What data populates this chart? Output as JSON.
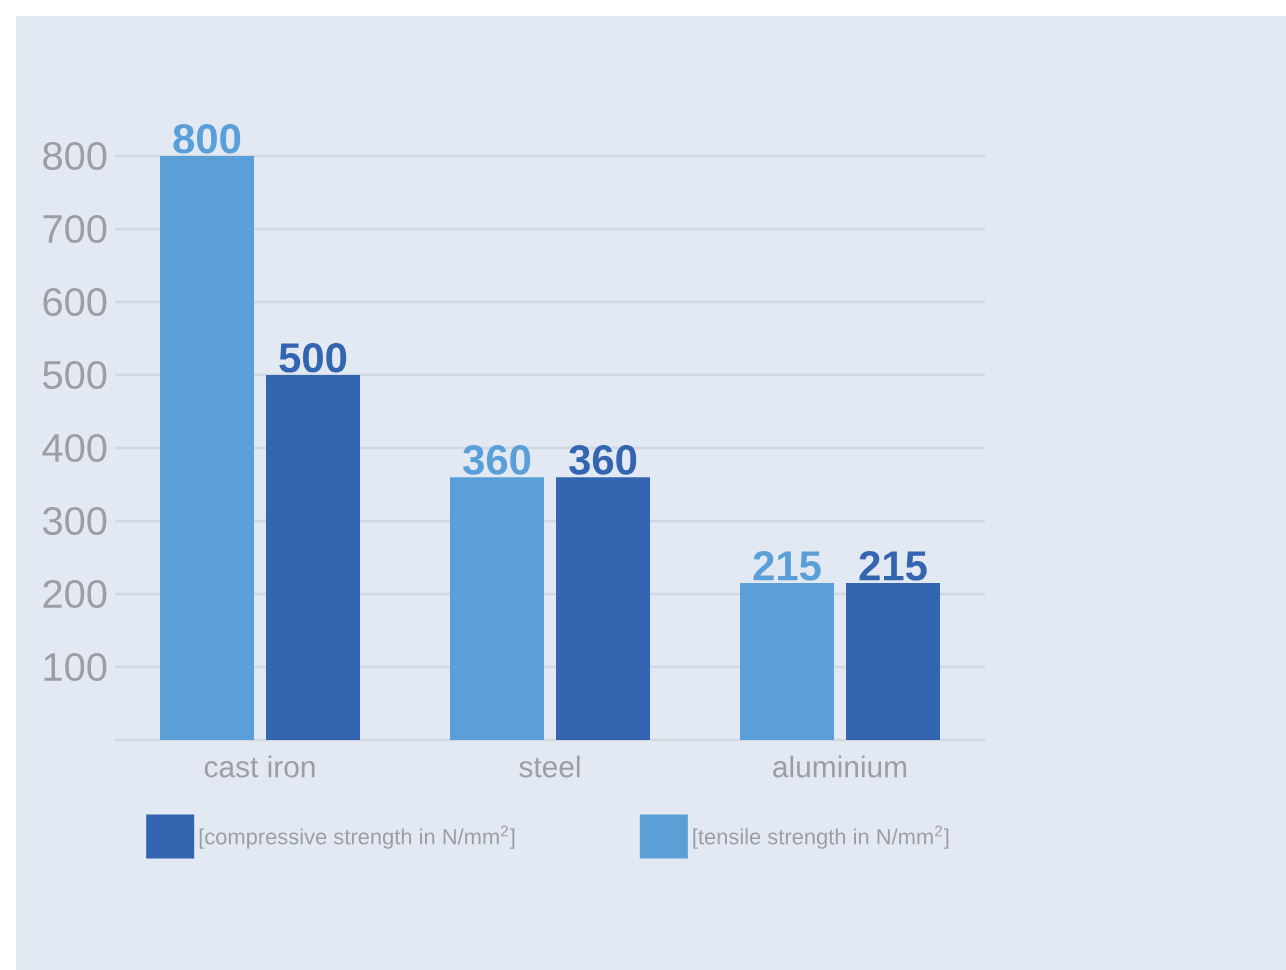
{
  "chart_data": {
    "type": "bar",
    "categories": [
      "cast iron",
      "steel",
      "aluminium"
    ],
    "series": [
      {
        "name": "[tensile strength in N/mm$^{2}$]",
        "color": "#5b9fd9",
        "values": [
          800,
          360,
          215
        ]
      },
      {
        "name": "[compressive strength in N/mm$^{2}$]",
        "color": "#3465b0",
        "values": [
          500,
          360,
          215
        ]
      }
    ],
    "ylim": [
      0,
      800
    ],
    "yticks": [
      {
        "value": 0,
        "label": null
      },
      100,
      200,
      300,
      400,
      500,
      600,
      700,
      800
    ],
    "grid": "y",
    "legend": "bottom",
    "data_labels": true
  }
}
